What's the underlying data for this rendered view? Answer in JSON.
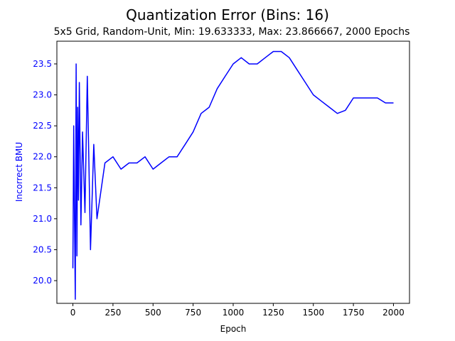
{
  "chart_data": {
    "type": "line",
    "title": "Quantization Error (Bins: 16)",
    "subtitle": "5x5 Grid, Random-Unit, Min: 19.633333, Max: 23.866667, 2000 Epochs",
    "xlabel": "Epoch",
    "ylabel": "Incorrect BMU",
    "xlim": [
      -100,
      2100
    ],
    "ylim": [
      19.633333,
      23.866667
    ],
    "xticks": [
      0,
      250,
      500,
      750,
      1000,
      1250,
      1500,
      1750,
      2000
    ],
    "yticks": [
      20.0,
      20.5,
      21.0,
      21.5,
      22.0,
      22.5,
      23.0,
      23.5
    ],
    "xtick_labels": [
      "0",
      "250",
      "500",
      "750",
      "1000",
      "1250",
      "1500",
      "1750",
      "2000"
    ],
    "ytick_labels": [
      "20.0",
      "20.5",
      "21.0",
      "21.5",
      "22.0",
      "22.5",
      "23.0",
      "23.5"
    ],
    "line_color": "#0000ff",
    "grid": false,
    "series": [
      {
        "x": [
          0,
          5,
          10,
          15,
          20,
          25,
          30,
          35,
          40,
          50,
          60,
          75,
          90,
          110,
          130,
          150,
          200,
          250,
          300,
          350,
          400,
          450,
          500,
          550,
          600,
          650,
          700,
          750,
          800,
          850,
          900,
          950,
          1000,
          1050,
          1100,
          1150,
          1200,
          1250,
          1300,
          1350,
          1400,
          1450,
          1500,
          1550,
          1600,
          1650,
          1700,
          1750,
          1800,
          1850,
          1900,
          1950,
          2000
        ],
        "values": [
          20.2,
          22.5,
          21.0,
          19.7,
          23.5,
          20.4,
          22.8,
          21.3,
          23.2,
          20.9,
          22.4,
          21.1,
          23.3,
          20.5,
          22.2,
          21.0,
          21.9,
          22.0,
          21.8,
          21.9,
          21.9,
          22.0,
          21.8,
          21.9,
          22.0,
          22.0,
          22.2,
          22.4,
          22.7,
          22.8,
          23.1,
          23.3,
          23.5,
          23.6,
          23.5,
          23.5,
          23.6,
          23.7,
          23.7,
          23.6,
          23.4,
          23.2,
          23.0,
          22.9,
          22.8,
          22.7,
          22.75,
          22.95,
          22.95,
          22.95,
          22.95,
          22.87,
          22.87
        ]
      }
    ]
  }
}
